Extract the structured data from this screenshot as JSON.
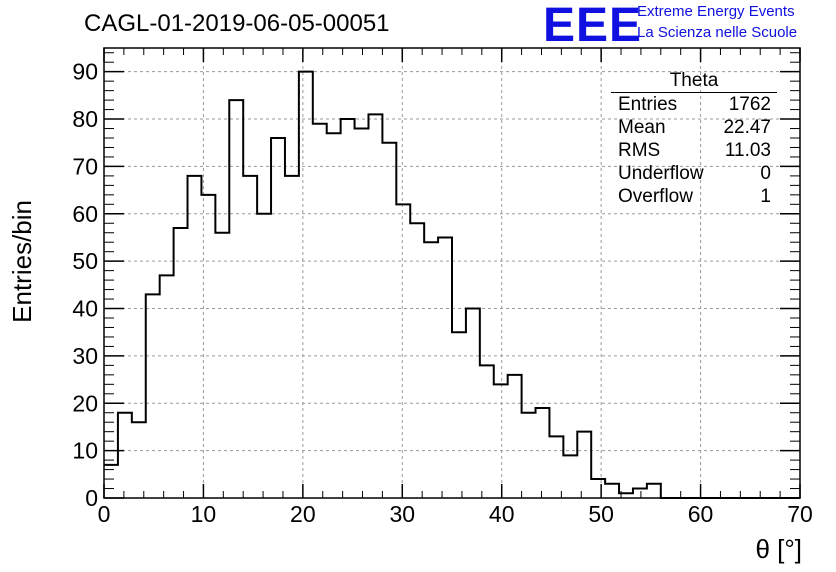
{
  "header": {
    "run_title": "CAGL-01-2019-06-05-00051",
    "logo_letters": "EEE",
    "logo_line1": "Extreme Energy Events",
    "logo_line2": "La Scienza nelle Scuole"
  },
  "colors": {
    "logo": "#1010e0",
    "histogram": "#000000",
    "grid": "#9a9a9a"
  },
  "stats_box": {
    "title": "Theta",
    "rows": [
      {
        "label": "Entries",
        "value": "1762"
      },
      {
        "label": "Mean",
        "value": "22.47"
      },
      {
        "label": "RMS",
        "value": "11.03"
      },
      {
        "label": "Underflow",
        "value": "0"
      },
      {
        "label": "Overflow",
        "value": "1"
      }
    ]
  },
  "chart_data": {
    "type": "histogram",
    "xlabel": "θ [°]",
    "ylabel": "Entries/bin",
    "xlim": [
      0,
      70
    ],
    "ylim": [
      0,
      95
    ],
    "xticks": [
      0,
      10,
      20,
      30,
      40,
      50,
      60,
      70
    ],
    "yticks": [
      0,
      10,
      20,
      30,
      40,
      50,
      60,
      70,
      80,
      90
    ],
    "grid": true,
    "bin_width": 1.4,
    "bin_edges_start": 0,
    "values": [
      7,
      18,
      16,
      43,
      47,
      57,
      68,
      64,
      56,
      84,
      68,
      60,
      76,
      68,
      90,
      79,
      77,
      80,
      78,
      81,
      75,
      62,
      58,
      54,
      55,
      35,
      40,
      28,
      24,
      26,
      18,
      19,
      13,
      9,
      14,
      4,
      3,
      1,
      2,
      3,
      0,
      0,
      0,
      0,
      0,
      0,
      0,
      0,
      0,
      0
    ]
  }
}
